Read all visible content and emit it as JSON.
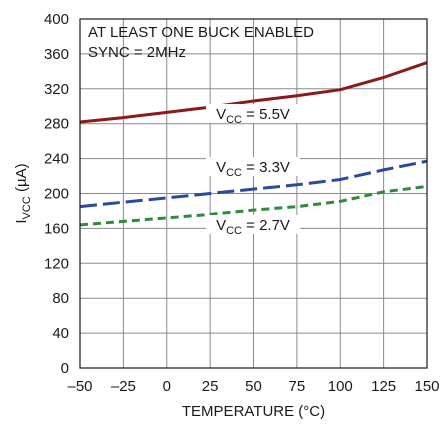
{
  "chart_data": {
    "type": "line",
    "xlabel": "TEMPERATURE (°C)",
    "ylabel_main": "I",
    "ylabel_sub": "VCC",
    "ylabel_unit": " (µA)",
    "xlim": [
      -50,
      150
    ],
    "ylim": [
      0,
      400
    ],
    "x_ticks": [
      -50,
      -25,
      0,
      25,
      50,
      75,
      100,
      125,
      150
    ],
    "x_tick_labels": [
      "–50",
      "–25",
      "0",
      "25",
      "50",
      "75",
      "100",
      "125",
      "150"
    ],
    "y_ticks": [
      0,
      40,
      80,
      120,
      160,
      200,
      240,
      280,
      320,
      360,
      400
    ],
    "y_tick_labels": [
      "0",
      "40",
      "80",
      "120",
      "160",
      "200",
      "240",
      "280",
      "320",
      "360",
      "400"
    ],
    "grid": true,
    "annotations": [
      "AT LEAST ONE BUCK ENABLED",
      "SYNC = 2MHz"
    ],
    "series": [
      {
        "label_main": "V",
        "label_sub": "CC",
        "label_value": " = 5.5V",
        "color": "#8b1a1a",
        "dash": "solid",
        "x": [
          -50,
          -25,
          0,
          25,
          50,
          75,
          100,
          125,
          150
        ],
        "values": [
          282,
          287,
          293,
          299,
          306,
          312,
          319,
          333,
          350
        ]
      },
      {
        "label_main": "V",
        "label_sub": "CC",
        "label_value": " = 3.3V",
        "color": "#2b4a9e",
        "dash": "long",
        "x": [
          -50,
          -25,
          0,
          25,
          50,
          75,
          100,
          125,
          150
        ],
        "values": [
          185,
          190,
          195,
          200,
          205,
          210,
          216,
          227,
          237
        ]
      },
      {
        "label_main": "V",
        "label_sub": "CC",
        "label_value": " = 2.7V",
        "color": "#2e8b3a",
        "dash": "short",
        "x": [
          -50,
          -25,
          0,
          25,
          50,
          75,
          100,
          125,
          150
        ],
        "values": [
          164,
          168,
          172,
          176,
          181,
          185,
          191,
          202,
          208
        ]
      }
    ]
  }
}
